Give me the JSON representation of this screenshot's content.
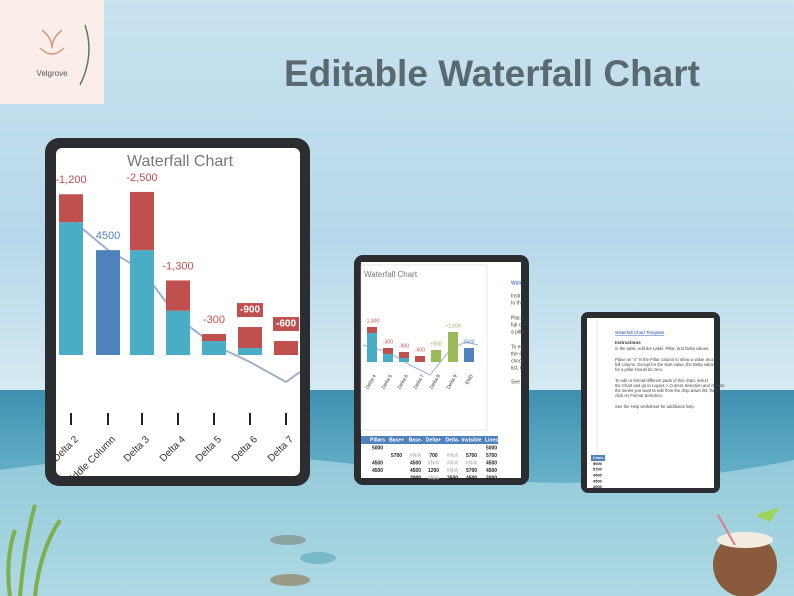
{
  "logo": {
    "name": "Velgrove"
  },
  "header": {
    "title": "Editable Waterfall Chart"
  },
  "tablet_large": {
    "chart_data": {
      "type": "waterfall",
      "title": "Waterfall Chart",
      "categories": [
        "Delta 2",
        "Middle Column",
        "Delta 3",
        "Delta 4",
        "Delta 5",
        "Delta 6",
        "Delta 7"
      ],
      "ylim": [
        0,
        8500
      ],
      "series": [
        {
          "color": "#4bacc6",
          "values": [
            5700,
            4500,
            4500,
            1900,
            600,
            300,
            null
          ]
        },
        {
          "color": "#c0504d",
          "values": [
            -1200,
            null,
            -2500,
            -1300,
            -300,
            -900,
            -600
          ],
          "value_labels": [
            "-1,200",
            null,
            "-2,500",
            "-1,300",
            "-300",
            "-900",
            "-600"
          ]
        }
      ],
      "total_color": "#4f81bd"
    }
  },
  "tablet_medium": {
    "chart_title": "Waterfall Chart",
    "bar_labels": [
      "-1,300",
      "-300",
      "-900",
      "-600",
      "+900",
      "+1,000",
      "1500"
    ],
    "categories": [
      "Delta 4",
      "Delta 5",
      "Delta 6",
      "Delta 7",
      "Delta 8",
      "Delta 9",
      "END"
    ],
    "side_text": [
      "Wate",
      "Instr",
      "In the",
      "Place",
      "full c",
      "a pilla",
      "To ed",
      "the C",
      "choos",
      "list, th",
      "See t"
    ],
    "table": {
      "header": [
        "Pillars",
        "Base+",
        "Base-",
        "Delta+",
        "Delta-",
        "Invisible",
        "Lines"
      ],
      "rows": [
        [
          "5000",
          "",
          "",
          "",
          "",
          "",
          "5000"
        ],
        [
          "",
          "5700",
          "#N/A",
          "700",
          "#N/A",
          "5700",
          "5700"
        ],
        [
          "4500",
          "",
          "4500",
          "#N/A",
          "#N/A",
          "#N/A",
          "4500"
        ],
        [
          "4500",
          "",
          "4500",
          "1200",
          "#N/A",
          "5700",
          "4500"
        ],
        [
          "",
          "",
          "2000",
          "#N/A",
          "2500",
          "4500",
          "2000"
        ]
      ]
    }
  },
  "tablet_small": {
    "link": "Waterfall Chart Template",
    "heading": "Instructions",
    "paragraphs": [
      "In the table, edit the Label, Pillar, and Delta values.",
      "Place an \"x\" in the Pillar column to show a value as a full column. Except for the start value, the Delta value for a pillar should be zero.",
      "To edit or format different parts of this chart, select the Chart and go to Layout > Current Selection and choose the series you want to edit from the drop down list, then click on Format Selection.",
      "See the Help worksheet for additional help."
    ],
    "column": [
      "Lines",
      "5000",
      "5700",
      "4500",
      "4500",
      "2000"
    ]
  }
}
